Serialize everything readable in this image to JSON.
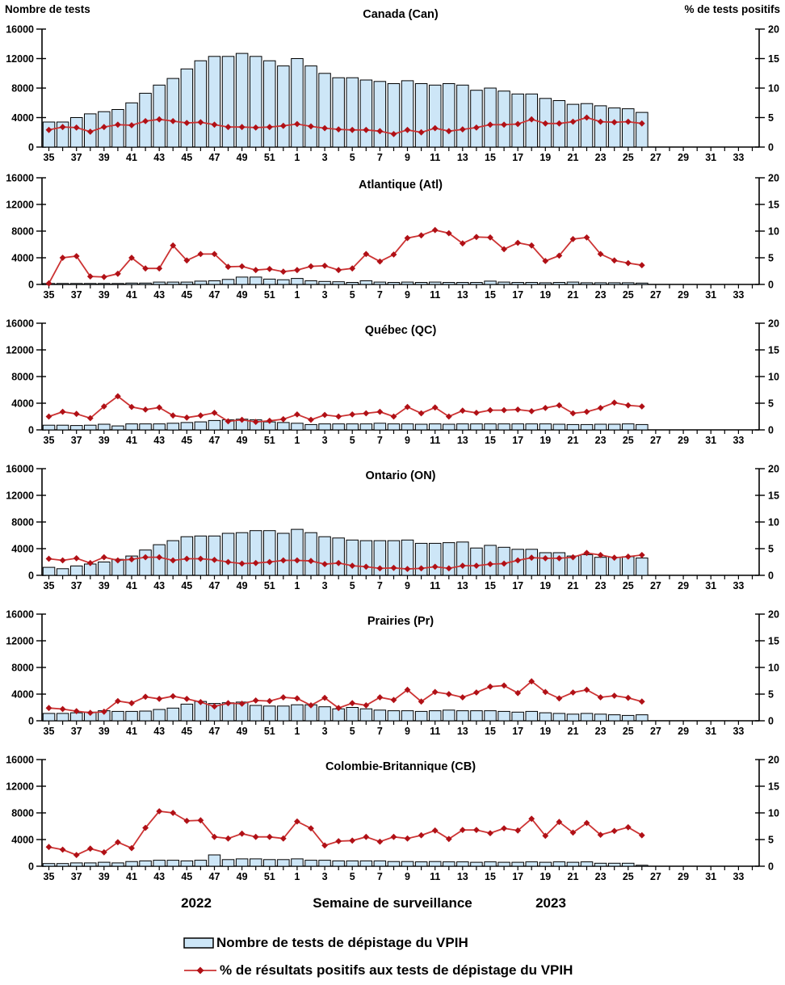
{
  "page": {
    "footer": {
      "year_left": "2022",
      "x_axis_title": "Semaine de surveillance",
      "year_right": "2023"
    },
    "legend": [
      {
        "swatch": "bar-swatch",
        "label": "Nombre de tests de dépistage du VPIH"
      },
      {
        "swatch": "line-swatch",
        "label": "% de résultats positifs aux tests de dépistage du VPIH"
      }
    ]
  },
  "chart_data": {
    "type": "bar+line",
    "grid": false,
    "legend_position": "bottom-left",
    "colors": {
      "bar_fill": "#CDE6F7",
      "bar_stroke": "#000000",
      "line": "#CC3333",
      "marker": "#B01016",
      "axis": "#000000"
    },
    "left_axis": {
      "title": "Nombre de tests",
      "ticks": [
        0,
        4000,
        8000,
        12000,
        16000
      ],
      "max": 16000
    },
    "right_axis": {
      "title": "% de tests positifs",
      "ticks": [
        0,
        5,
        10,
        15,
        20
      ],
      "max": 20
    },
    "categories": [
      "35",
      "36",
      "37",
      "38",
      "39",
      "40",
      "41",
      "42",
      "43",
      "44",
      "45",
      "46",
      "47",
      "48",
      "49",
      "50",
      "51",
      "52",
      "1",
      "2",
      "3",
      "4",
      "5",
      "6",
      "7",
      "8",
      "9",
      "10",
      "11",
      "12",
      "13",
      "14",
      "15",
      "16",
      "17",
      "18",
      "19",
      "20",
      "21",
      "22",
      "23",
      "24",
      "25",
      "26",
      "27",
      "28",
      "29",
      "30",
      "31",
      "32",
      "33",
      "34"
    ],
    "label_every": 2,
    "panels": [
      {
        "id": "can",
        "title": "Canada (Can)",
        "bars": [
          3400,
          3400,
          4000,
          4500,
          4800,
          5100,
          6000,
          7300,
          8400,
          9300,
          10600,
          11700,
          12300,
          12300,
          12700,
          12300,
          11700,
          11000,
          12000,
          11000,
          10000,
          9400,
          9400,
          9100,
          8900,
          8600,
          9000,
          8600,
          8400,
          8600,
          8400,
          7700,
          8000,
          7600,
          7200,
          7200,
          6600,
          6300,
          5800,
          5900,
          5600,
          5300,
          5200,
          4700
        ],
        "line": [
          2.9,
          3.4,
          3.3,
          2.6,
          3.4,
          3.8,
          3.7,
          4.4,
          4.7,
          4.4,
          4.1,
          4.2,
          3.8,
          3.4,
          3.4,
          3.3,
          3.4,
          3.6,
          3.9,
          3.5,
          3.2,
          3.0,
          2.9,
          2.9,
          2.7,
          2.2,
          2.9,
          2.5,
          3.2,
          2.7,
          3.0,
          3.3,
          3.8,
          3.8,
          3.9,
          4.7,
          4.0,
          4.0,
          4.3,
          5.0,
          4.3,
          4.2,
          4.3,
          4.0
        ]
      },
      {
        "id": "atl",
        "title": "Atlantique (Atl)",
        "bars": [
          150,
          150,
          150,
          150,
          150,
          150,
          200,
          200,
          350,
          350,
          350,
          500,
          550,
          750,
          1100,
          1100,
          800,
          700,
          900,
          550,
          450,
          400,
          300,
          550,
          350,
          300,
          350,
          300,
          350,
          300,
          300,
          300,
          500,
          350,
          300,
          300,
          250,
          300,
          350,
          250,
          250,
          250,
          250,
          200
        ],
        "line": [
          0.2,
          5.0,
          5.3,
          1.5,
          1.4,
          2.0,
          5.0,
          3.0,
          3.0,
          7.3,
          4.5,
          5.7,
          5.7,
          3.3,
          3.4,
          2.7,
          2.9,
          2.4,
          2.7,
          3.4,
          3.5,
          2.7,
          3.0,
          5.7,
          4.3,
          5.6,
          8.7,
          9.2,
          10.2,
          9.6,
          7.7,
          8.9,
          8.8,
          6.6,
          7.8,
          7.3,
          4.4,
          5.4,
          8.5,
          8.8,
          5.7,
          4.5,
          4.0,
          3.6
        ]
      },
      {
        "id": "qc",
        "title": "Québec (QC)",
        "bars": [
          700,
          700,
          650,
          700,
          850,
          600,
          900,
          900,
          900,
          1000,
          1100,
          1200,
          1400,
          1500,
          1600,
          1500,
          1200,
          1100,
          1000,
          800,
          900,
          900,
          900,
          900,
          1000,
          900,
          900,
          850,
          900,
          850,
          900,
          900,
          900,
          900,
          900,
          900,
          900,
          850,
          800,
          800,
          850,
          850,
          900,
          800
        ],
        "line": [
          2.5,
          3.4,
          3.0,
          2.2,
          4.4,
          6.3,
          4.3,
          3.8,
          4.2,
          2.7,
          2.3,
          2.7,
          3.2,
          1.6,
          1.9,
          1.5,
          1.7,
          2.0,
          2.9,
          1.9,
          2.8,
          2.5,
          2.9,
          3.1,
          3.4,
          2.5,
          4.3,
          3.1,
          4.2,
          2.5,
          3.6,
          3.2,
          3.7,
          3.7,
          3.8,
          3.5,
          4.1,
          4.6,
          3.1,
          3.4,
          4.1,
          5.1,
          4.6,
          4.4
        ]
      },
      {
        "id": "on",
        "title": "Ontario (ON)",
        "bars": [
          1200,
          1000,
          1400,
          1700,
          2000,
          2400,
          2900,
          3800,
          4600,
          5200,
          5800,
          5900,
          5900,
          6300,
          6400,
          6700,
          6700,
          6300,
          6900,
          6400,
          5800,
          5600,
          5300,
          5200,
          5200,
          5200,
          5300,
          4800,
          4800,
          4900,
          5000,
          4100,
          4500,
          4200,
          3900,
          3900,
          3400,
          3400,
          2900,
          3100,
          2700,
          2700,
          2800,
          2600
        ],
        "line": [
          3.1,
          2.8,
          3.2,
          2.3,
          3.4,
          2.8,
          3.0,
          3.4,
          3.4,
          2.8,
          3.1,
          3.1,
          2.9,
          2.5,
          2.2,
          2.3,
          2.5,
          2.8,
          2.8,
          2.7,
          2.1,
          2.3,
          1.8,
          1.6,
          1.3,
          1.4,
          1.2,
          1.3,
          1.6,
          1.3,
          1.8,
          1.8,
          2.1,
          2.2,
          2.8,
          3.3,
          3.2,
          3.2,
          3.4,
          4.2,
          3.8,
          3.3,
          3.5,
          3.8
        ]
      },
      {
        "id": "pr",
        "title": "Prairies (Pr)",
        "bars": [
          1100,
          1100,
          1200,
          1300,
          1500,
          1400,
          1400,
          1450,
          1700,
          1900,
          2500,
          2900,
          2600,
          2700,
          2800,
          2300,
          2200,
          2200,
          2400,
          2400,
          2100,
          1800,
          2000,
          1800,
          1600,
          1500,
          1500,
          1400,
          1500,
          1600,
          1500,
          1500,
          1500,
          1400,
          1300,
          1400,
          1200,
          1100,
          1000,
          1100,
          1000,
          900,
          800,
          900
        ],
        "line": [
          2.4,
          2.2,
          1.8,
          1.5,
          1.7,
          3.7,
          3.3,
          4.5,
          4.1,
          4.6,
          4.1,
          3.5,
          2.7,
          3.3,
          3.2,
          3.8,
          3.7,
          4.4,
          4.2,
          2.9,
          4.3,
          2.4,
          3.3,
          2.9,
          4.4,
          3.9,
          5.8,
          3.6,
          5.4,
          5.0,
          4.4,
          5.3,
          6.4,
          6.6,
          5.2,
          7.4,
          5.4,
          4.2,
          5.3,
          5.8,
          4.4,
          4.7,
          4.3,
          3.6
        ]
      },
      {
        "id": "cb",
        "title": "Colombie-Britannique (CB)",
        "bars": [
          400,
          400,
          500,
          500,
          600,
          500,
          700,
          800,
          900,
          900,
          800,
          900,
          1700,
          1000,
          1100,
          1100,
          1000,
          1000,
          1100,
          900,
          900,
          800,
          800,
          800,
          800,
          700,
          700,
          650,
          700,
          650,
          650,
          600,
          650,
          600,
          600,
          650,
          600,
          650,
          600,
          650,
          450,
          450,
          450,
          150
        ],
        "line": [
          3.6,
          3.1,
          2.1,
          3.3,
          2.6,
          4.5,
          3.4,
          7.2,
          10.3,
          10.0,
          8.5,
          8.6,
          5.5,
          5.2,
          6.1,
          5.5,
          5.5,
          5.2,
          8.4,
          7.1,
          3.9,
          4.7,
          4.8,
          5.5,
          4.6,
          5.5,
          5.2,
          5.8,
          6.7,
          5.1,
          6.8,
          6.8,
          6.2,
          7.1,
          6.7,
          8.9,
          5.7,
          8.3,
          6.3,
          8.1,
          5.9,
          6.6,
          7.3,
          5.8
        ]
      }
    ]
  }
}
